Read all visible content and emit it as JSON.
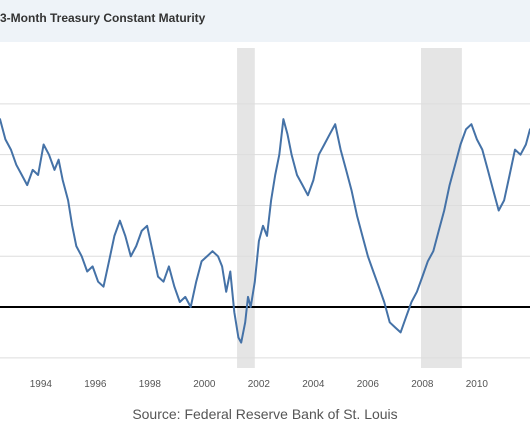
{
  "header": {
    "title": "3-Month Treasury Constant Maturity"
  },
  "source": "Source: Federal Reserve Bank of St. Louis",
  "colors": {
    "line": "#4572a7",
    "recession": "#e5e5e5",
    "grid": "#dddddd",
    "reference_line": "#000000",
    "title_bar": "#eef3f8"
  },
  "chart_data": {
    "type": "line",
    "title": "3-Month Treasury Constant Maturity",
    "xlabel": "",
    "ylabel": "",
    "x_range": [
      1992.5,
      2011.95
    ],
    "y_range": [
      -0.6,
      2.55
    ],
    "y_scale_note": "log scale, y-axis tick labels cropped out of view",
    "grid": "horizontal",
    "legend": "none",
    "x_ticks": [
      {
        "x": 1994,
        "label": "1994"
      },
      {
        "x": 1996,
        "label": "1996"
      },
      {
        "x": 1998,
        "label": "1998"
      },
      {
        "x": 2000,
        "label": "2000"
      },
      {
        "x": 2002,
        "label": "2002"
      },
      {
        "x": 2004,
        "label": "2004"
      },
      {
        "x": 2006,
        "label": "2006"
      },
      {
        "x": 2008,
        "label": "2008"
      },
      {
        "x": 2010,
        "label": "2010"
      }
    ],
    "y_grid": [
      2.0,
      1.5,
      1.0,
      0.5,
      0.0,
      -0.5
    ],
    "reference_line": 0.0,
    "recessions": [
      {
        "start": 2001.2,
        "end": 2001.85
      },
      {
        "start": 2007.95,
        "end": 2009.45
      }
    ],
    "series": [
      {
        "values": [
          [
            1992.5,
            1.85
          ],
          [
            1992.7,
            1.65
          ],
          [
            1992.9,
            1.55
          ],
          [
            1993.1,
            1.4
          ],
          [
            1993.3,
            1.3
          ],
          [
            1993.5,
            1.2
          ],
          [
            1993.7,
            1.35
          ],
          [
            1993.9,
            1.3
          ],
          [
            1994.1,
            1.6
          ],
          [
            1994.3,
            1.5
          ],
          [
            1994.5,
            1.35
          ],
          [
            1994.65,
            1.45
          ],
          [
            1994.8,
            1.25
          ],
          [
            1995.0,
            1.05
          ],
          [
            1995.15,
            0.8
          ],
          [
            1995.3,
            0.6
          ],
          [
            1995.5,
            0.5
          ],
          [
            1995.7,
            0.35
          ],
          [
            1995.9,
            0.4
          ],
          [
            1996.1,
            0.25
          ],
          [
            1996.3,
            0.2
          ],
          [
            1996.5,
            0.45
          ],
          [
            1996.7,
            0.7
          ],
          [
            1996.9,
            0.85
          ],
          [
            1997.1,
            0.7
          ],
          [
            1997.3,
            0.5
          ],
          [
            1997.5,
            0.6
          ],
          [
            1997.7,
            0.75
          ],
          [
            1997.9,
            0.8
          ],
          [
            1998.1,
            0.55
          ],
          [
            1998.3,
            0.3
          ],
          [
            1998.5,
            0.25
          ],
          [
            1998.7,
            0.4
          ],
          [
            1998.9,
            0.2
          ],
          [
            1999.1,
            0.05
          ],
          [
            1999.3,
            0.1
          ],
          [
            1999.5,
            0.0
          ],
          [
            1999.7,
            0.25
          ],
          [
            1999.9,
            0.45
          ],
          [
            2000.1,
            0.5
          ],
          [
            2000.3,
            0.55
          ],
          [
            2000.5,
            0.5
          ],
          [
            2000.65,
            0.4
          ],
          [
            2000.8,
            0.15
          ],
          [
            2000.95,
            0.35
          ],
          [
            2001.1,
            -0.05
          ],
          [
            2001.25,
            -0.3
          ],
          [
            2001.35,
            -0.35
          ],
          [
            2001.5,
            -0.15
          ],
          [
            2001.6,
            0.1
          ],
          [
            2001.7,
            0.0
          ],
          [
            2001.85,
            0.25
          ],
          [
            2002.0,
            0.65
          ],
          [
            2002.15,
            0.8
          ],
          [
            2002.3,
            0.7
          ],
          [
            2002.45,
            1.05
          ],
          [
            2002.6,
            1.3
          ],
          [
            2002.75,
            1.5
          ],
          [
            2002.9,
            1.85
          ],
          [
            2003.05,
            1.7
          ],
          [
            2003.2,
            1.5
          ],
          [
            2003.4,
            1.3
          ],
          [
            2003.6,
            1.2
          ],
          [
            2003.8,
            1.1
          ],
          [
            2004.0,
            1.25
          ],
          [
            2004.2,
            1.5
          ],
          [
            2004.4,
            1.6
          ],
          [
            2004.6,
            1.7
          ],
          [
            2004.8,
            1.8
          ],
          [
            2005.0,
            1.55
          ],
          [
            2005.2,
            1.35
          ],
          [
            2005.4,
            1.15
          ],
          [
            2005.6,
            0.9
          ],
          [
            2005.8,
            0.7
          ],
          [
            2006.0,
            0.5
          ],
          [
            2006.2,
            0.35
          ],
          [
            2006.4,
            0.2
          ],
          [
            2006.6,
            0.05
          ],
          [
            2006.8,
            -0.15
          ],
          [
            2007.0,
            -0.2
          ],
          [
            2007.2,
            -0.25
          ],
          [
            2007.4,
            -0.1
          ],
          [
            2007.6,
            0.05
          ],
          [
            2007.8,
            0.15
          ],
          [
            2008.0,
            0.3
          ],
          [
            2008.2,
            0.45
          ],
          [
            2008.4,
            0.55
          ],
          [
            2008.6,
            0.75
          ],
          [
            2008.8,
            0.95
          ],
          [
            2009.0,
            1.2
          ],
          [
            2009.2,
            1.4
          ],
          [
            2009.4,
            1.6
          ],
          [
            2009.6,
            1.75
          ],
          [
            2009.8,
            1.8
          ],
          [
            2010.0,
            1.65
          ],
          [
            2010.2,
            1.55
          ],
          [
            2010.4,
            1.35
          ],
          [
            2010.6,
            1.15
          ],
          [
            2010.8,
            0.95
          ],
          [
            2011.0,
            1.05
          ],
          [
            2011.2,
            1.3
          ],
          [
            2011.4,
            1.55
          ],
          [
            2011.6,
            1.5
          ],
          [
            2011.8,
            1.6
          ],
          [
            2011.95,
            1.75
          ]
        ]
      }
    ]
  }
}
